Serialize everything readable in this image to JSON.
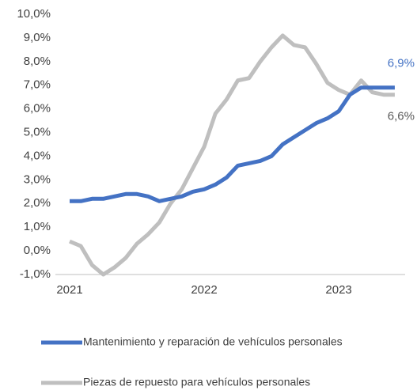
{
  "chart_data": {
    "type": "line",
    "categories": [
      "2021",
      null,
      null,
      null,
      null,
      null,
      null,
      null,
      null,
      null,
      null,
      null,
      "2022",
      null,
      null,
      null,
      null,
      null,
      null,
      null,
      null,
      null,
      null,
      null,
      "2023",
      null,
      null,
      null,
      null,
      null
    ],
    "series": [
      {
        "name": "Mantenimiento y reparación de vehículos personales",
        "color": "#4472c4",
        "values": [
          2.1,
          2.1,
          2.2,
          2.2,
          2.3,
          2.4,
          2.4,
          2.3,
          2.1,
          2.2,
          2.3,
          2.5,
          2.6,
          2.8,
          3.1,
          3.6,
          3.7,
          3.8,
          4.0,
          4.5,
          4.8,
          5.1,
          5.4,
          5.6,
          5.9,
          6.6,
          6.9,
          6.9,
          6.9,
          6.9
        ],
        "value_labels": [
          null,
          null,
          null,
          null,
          null,
          null,
          null,
          null,
          null,
          null,
          null,
          null,
          null,
          null,
          null,
          null,
          null,
          null,
          null,
          null,
          null,
          null,
          null,
          null,
          null,
          null,
          null,
          null,
          null,
          "6,9%"
        ]
      },
      {
        "name": "Piezas de repuesto para vehículos personales",
        "color": "#bfbfbf",
        "values": [
          0.4,
          0.2,
          -0.6,
          -1.0,
          -0.7,
          -0.3,
          0.3,
          0.7,
          1.2,
          2.0,
          2.6,
          3.5,
          4.4,
          5.8,
          6.4,
          7.2,
          7.3,
          8.0,
          8.6,
          9.1,
          8.7,
          8.6,
          7.9,
          7.1,
          6.8,
          6.6,
          7.2,
          6.7,
          6.6,
          6.6
        ],
        "value_labels": [
          null,
          null,
          null,
          null,
          null,
          null,
          null,
          null,
          null,
          null,
          null,
          null,
          null,
          null,
          null,
          null,
          null,
          null,
          null,
          null,
          null,
          null,
          null,
          null,
          null,
          null,
          null,
          null,
          null,
          "6,6%"
        ]
      }
    ],
    "ylim": [
      -1,
      10
    ],
    "yticks": [
      {
        "value": -1,
        "label": "-1,0%"
      },
      {
        "value": 0,
        "label": "0,0%"
      },
      {
        "value": 1,
        "label": "1,0%"
      },
      {
        "value": 2,
        "label": "2,0%"
      },
      {
        "value": 3,
        "label": "3,0%"
      },
      {
        "value": 4,
        "label": "4,0%"
      },
      {
        "value": 5,
        "label": "5,0%"
      },
      {
        "value": 6,
        "label": "6,0%"
      },
      {
        "value": 7,
        "label": "7,0%"
      },
      {
        "value": 8,
        "label": "8,0%"
      },
      {
        "value": 9,
        "label": "9,0%"
      },
      {
        "value": 10,
        "label": "10,0%"
      }
    ],
    "grid": false,
    "legend": "bottom"
  }
}
